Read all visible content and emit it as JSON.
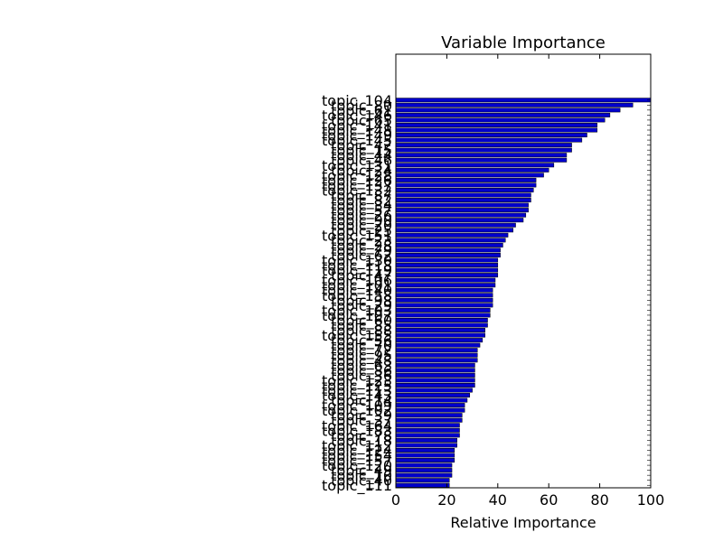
{
  "chart_data": {
    "type": "bar",
    "orientation": "horizontal",
    "title": "Variable Importance",
    "xlabel": "Relative Importance",
    "ylabel": "",
    "xlim": [
      0,
      100
    ],
    "xticks": [
      "0",
      "20",
      "40",
      "60",
      "80",
      "100"
    ],
    "grid": false,
    "legend": "none",
    "bar_color": "#0000cc",
    "categories": [
      "topic_104",
      "topic_80",
      "topic_61",
      "topic_146",
      "topic_65",
      "topic_141",
      "topic_148",
      "topic_149",
      "topic_145",
      "topic_42",
      "topic_15",
      "topic_44",
      "topic_46",
      "topic_131",
      "topic_24",
      "topic_128",
      "topic_126",
      "topic_137",
      "topic_132",
      "topic_87",
      "topic_82",
      "topic_34",
      "topic_57",
      "topic_26",
      "topic_90",
      "topic_20",
      "topic_25",
      "topic_151",
      "topic_23",
      "topic_28",
      "topic_79",
      "topic_62",
      "topic_130",
      "topic_118",
      "topic_119",
      "topic_47",
      "topic_106",
      "topic_101",
      "topic_140",
      "topic_158",
      "topic_98",
      "topic_29",
      "topic_103",
      "topic_107",
      "topic_60",
      "topic_85",
      "topic_88",
      "topic_155",
      "topic_56",
      "topic_70",
      "topic_72",
      "topic_95",
      "topic_48",
      "topic_63",
      "topic_86",
      "topic_36",
      "topic_123",
      "topic_125",
      "topic_113",
      "topic_143",
      "topic_14",
      "topic_109",
      "topic_102",
      "topic_39",
      "topic_37",
      "topic_164",
      "topic_183",
      "topic_78",
      "topic_18",
      "topic_112",
      "topic_124",
      "topic_154",
      "topic_157",
      "topic_120",
      "topic_49",
      "topic_10",
      "topic_40",
      "topic_111"
    ],
    "values": [
      100,
      93,
      88,
      84,
      82,
      79,
      79,
      75,
      73,
      69,
      69,
      67,
      67,
      62,
      60,
      58,
      55,
      55,
      54,
      53,
      53,
      52,
      52,
      51,
      50,
      47,
      46,
      44,
      43,
      42,
      41,
      41,
      40,
      40,
      40,
      40,
      39,
      39,
      38,
      38,
      38,
      38,
      37,
      37,
      36,
      36,
      35,
      35,
      34,
      33,
      32,
      32,
      32,
      31,
      31,
      31,
      31,
      31,
      30,
      29,
      28,
      27,
      27,
      26,
      26,
      25,
      25,
      25,
      24,
      24,
      23,
      23,
      23,
      22,
      22,
      22,
      21,
      21
    ]
  }
}
